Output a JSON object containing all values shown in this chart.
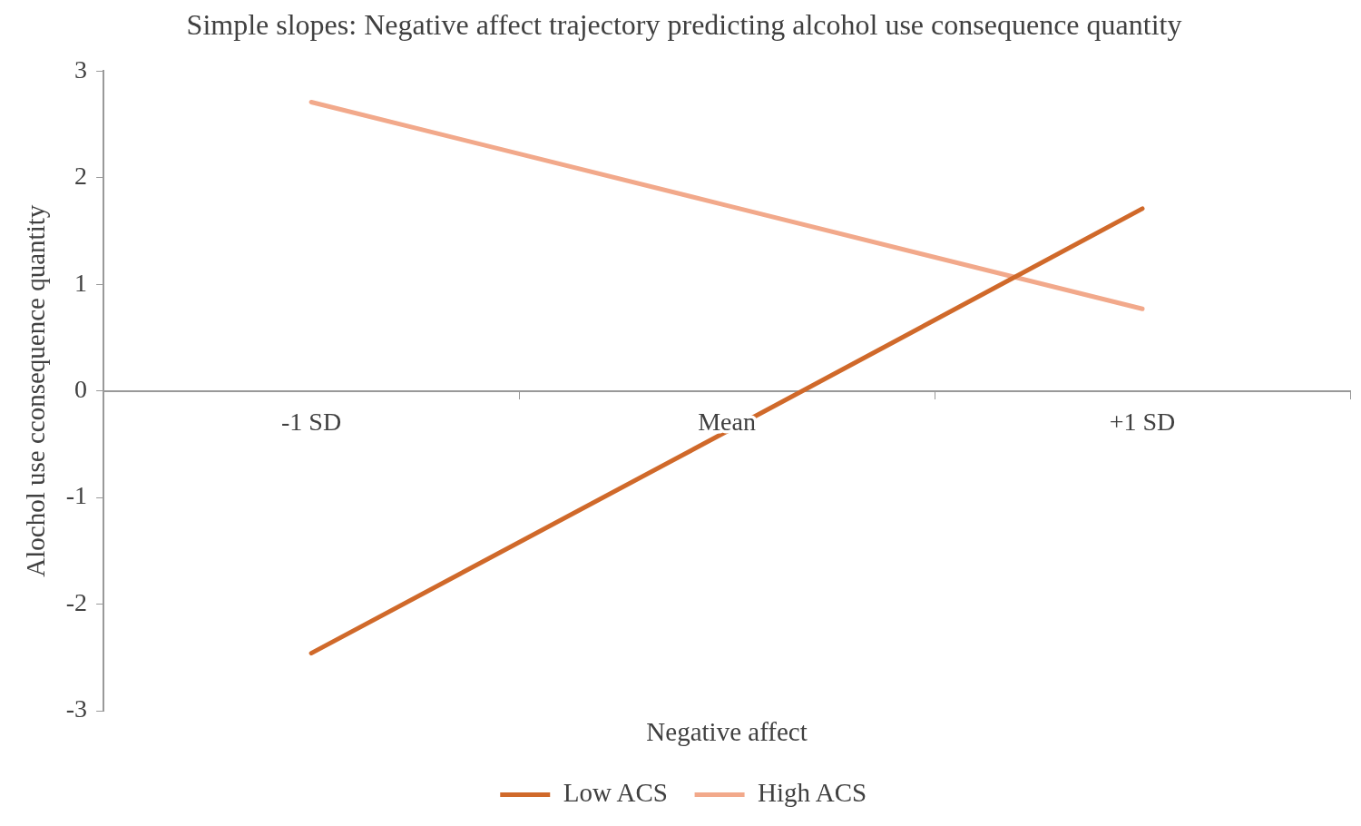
{
  "chart_data": {
    "type": "line",
    "title": "Simple slopes: Negative affect trajectory predicting alcohol use consequence quantity",
    "xlabel": "Negative affect",
    "ylabel": "Alochol use cconsequence quantity",
    "categories": [
      "-1 SD",
      "Mean",
      "+1 SD"
    ],
    "series": [
      {
        "name": "Low ACS",
        "color": "#d0692a",
        "values": [
          -2.46,
          -0.38,
          1.71
        ]
      },
      {
        "name": "High ACS",
        "color": "#f2a98b",
        "values": [
          2.71,
          1.74,
          0.77
        ]
      }
    ],
    "ylim": [
      -3,
      3
    ],
    "yticks": [
      -3,
      -2,
      -1,
      0,
      1,
      2,
      3
    ],
    "legend": "bottom",
    "marker": "none"
  }
}
